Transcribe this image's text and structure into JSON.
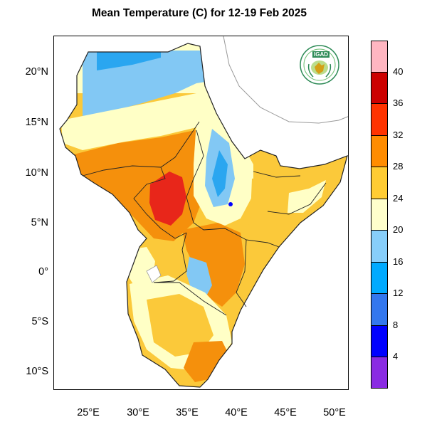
{
  "title": "Mean Temperature (C) for 12-19 Feb 2025",
  "logo_text": "IGAD",
  "lat_labels": [
    "20°N",
    "15°N",
    "10°N",
    "5°N",
    "0°",
    "5°S",
    "10°S"
  ],
  "lon_labels": [
    "25°E",
    "30°E",
    "35°E",
    "40°E",
    "45°E",
    "50°E"
  ],
  "legend": {
    "labels": [
      "40",
      "36",
      "32",
      "28",
      "24",
      "20",
      "16",
      "12",
      "8",
      "4"
    ],
    "colors": [
      "#ffb6c1",
      "#cc0000",
      "#ff3300",
      "#ff8c00",
      "#ffcc33",
      "#ffffcc",
      "#87cefa",
      "#00aaff",
      "#3377ee",
      "#0000ff",
      "#8a2be2"
    ]
  },
  "colors": {
    "hot_red": "#e8261a",
    "orange": "#f5900c",
    "gold": "#fbc93a",
    "cream": "#ffffc6",
    "light_blue": "#82c8f4",
    "mid_blue": "#2aa6f0",
    "border": "#222222",
    "coast_line": "#999999"
  }
}
